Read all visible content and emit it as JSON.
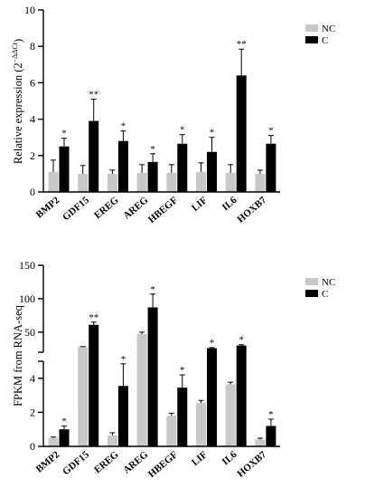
{
  "chart_data": [
    {
      "type": "bar",
      "categories": [
        "BMP2",
        "GDF15",
        "EREG",
        "AREG",
        "HBEGF",
        "LIF",
        "IL6",
        "HOXB7"
      ],
      "ylabel": "Relative expression (2",
      "ylabel_sup": "−ΔΔCt",
      "ylabel_close": ")",
      "ylim": [
        0,
        10
      ],
      "y_ticks": [
        "0",
        "2",
        "4",
        "6",
        "8",
        "10"
      ],
      "legend_position": "top-right",
      "series": [
        {
          "name": "NC",
          "color": "#c8c8c8",
          "values": [
            1.1,
            1.0,
            1.0,
            1.05,
            1.05,
            1.1,
            1.05,
            1.0
          ],
          "errors": [
            0.65,
            0.45,
            0.2,
            0.45,
            0.45,
            0.5,
            0.45,
            0.2
          ],
          "significance": [
            "",
            "",
            "",
            "",
            "",
            "",
            "",
            ""
          ]
        },
        {
          "name": "C",
          "color": "#000000",
          "values": [
            2.5,
            3.9,
            2.8,
            1.65,
            2.65,
            2.2,
            6.4,
            2.65
          ],
          "errors": [
            0.45,
            1.2,
            0.55,
            0.45,
            0.5,
            0.8,
            1.45,
            0.45
          ],
          "significance": [
            "*",
            "**",
            "*",
            "*",
            "*",
            "*",
            "**",
            "*"
          ]
        }
      ]
    },
    {
      "type": "bar",
      "categories": [
        "BMP2",
        "GDF15",
        "EREG",
        "AREG",
        "HBEGF",
        "LIF",
        "IL6",
        "HOXB7"
      ],
      "ylabel": "FPKM from RNA-seq",
      "broken_axis": true,
      "ylim_lower": [
        0,
        5
      ],
      "ylim_upper": [
        20,
        150
      ],
      "y_ticks_lower": [
        "0",
        "2",
        "4"
      ],
      "y_ticks_upper": [
        "50",
        "100",
        "150"
      ],
      "legend_position": "top-right",
      "series": [
        {
          "name": "NC",
          "color": "#c8c8c8",
          "values": [
            0.5,
            28,
            0.65,
            47,
            1.8,
            2.55,
            3.65,
            0.4
          ],
          "errors": [
            0.05,
            0.5,
            0.15,
            3,
            0.15,
            0.15,
            0.12,
            0.08
          ],
          "significance": [
            "",
            "",
            "",
            "",
            "",
            "",
            "",
            ""
          ]
        },
        {
          "name": "C",
          "color": "#000000",
          "values": [
            1.0,
            61,
            3.55,
            87,
            3.45,
            26,
            30,
            1.2
          ],
          "errors": [
            0.2,
            4,
            1.3,
            20,
            0.75,
            1,
            1.2,
            0.4
          ],
          "significance": [
            "*",
            "**",
            "*",
            "*",
            "*",
            "*",
            "*",
            "*"
          ]
        }
      ]
    }
  ]
}
